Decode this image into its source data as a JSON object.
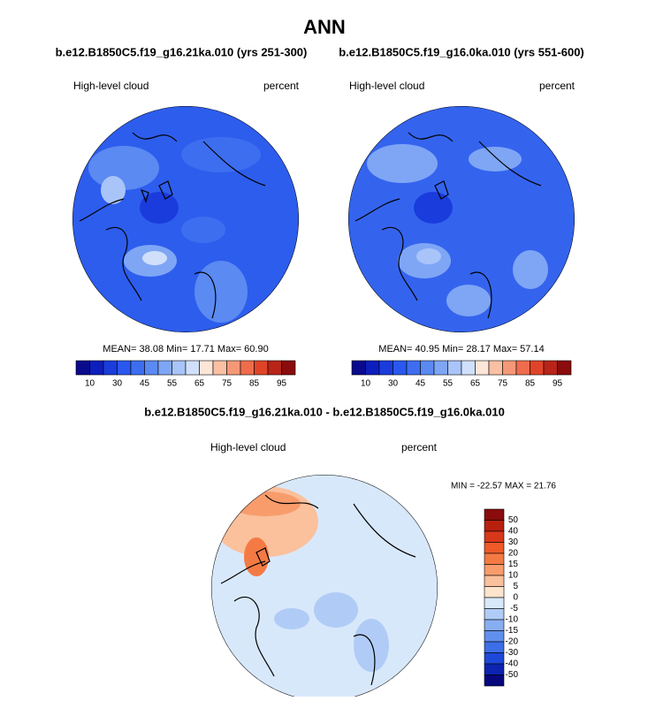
{
  "title": "ANN",
  "panels": [
    {
      "subtitle": "b.e12.B1850C5.f19_g16.21ka.010 (yrs 251-300)",
      "left_label": "High-level cloud",
      "right_label": "percent",
      "stats": "MEAN=  38.08  Min=  17.71  Max=  60.90"
    },
    {
      "subtitle": "b.e12.B1850C5.f19_g16.0ka.010 (yrs 551-600)",
      "left_label": "High-level cloud",
      "right_label": "percent",
      "stats": "MEAN=  40.95  Min=  28.17  Max=  57.14"
    }
  ],
  "colorbar": {
    "labels": [
      "10",
      "30",
      "45",
      "55",
      "65",
      "75",
      "85",
      "95"
    ],
    "colors": [
      "#0a0a8c",
      "#0d1ebe",
      "#1a3cdc",
      "#2a58ee",
      "#3d6ef0",
      "#5a8af2",
      "#7fa6f5",
      "#a8c4f8",
      "#d0e0fb",
      "#fde6d8",
      "#f9c0a4",
      "#f59878",
      "#ef6c4c",
      "#e04428",
      "#b82418",
      "#8a0c0c"
    ]
  },
  "difference": {
    "title": "b.e12.B1850C5.f19_g16.21ka.010 - b.e12.B1850C5.f19_g16.0ka.010",
    "left_label": "High-level cloud",
    "right_label": "percent",
    "stats": "MIN = -22.57 MAX =  21.76",
    "colorbar": {
      "labels": [
        "50",
        "40",
        "30",
        "20",
        "15",
        "10",
        "5",
        "0",
        "-5",
        "-10",
        "-15",
        "-20",
        "-30",
        "-40",
        "-50"
      ],
      "colors": [
        "#8a0c0c",
        "#b8200e",
        "#d8381a",
        "#ee5a28",
        "#f47a44",
        "#f89c6c",
        "#fbc09c",
        "#fde4cc",
        "#d8e8fb",
        "#b0ccf6",
        "#88aef2",
        "#6090ee",
        "#3c6ee8",
        "#1e48d8",
        "#0c24b0",
        "#06087c"
      ]
    }
  }
}
